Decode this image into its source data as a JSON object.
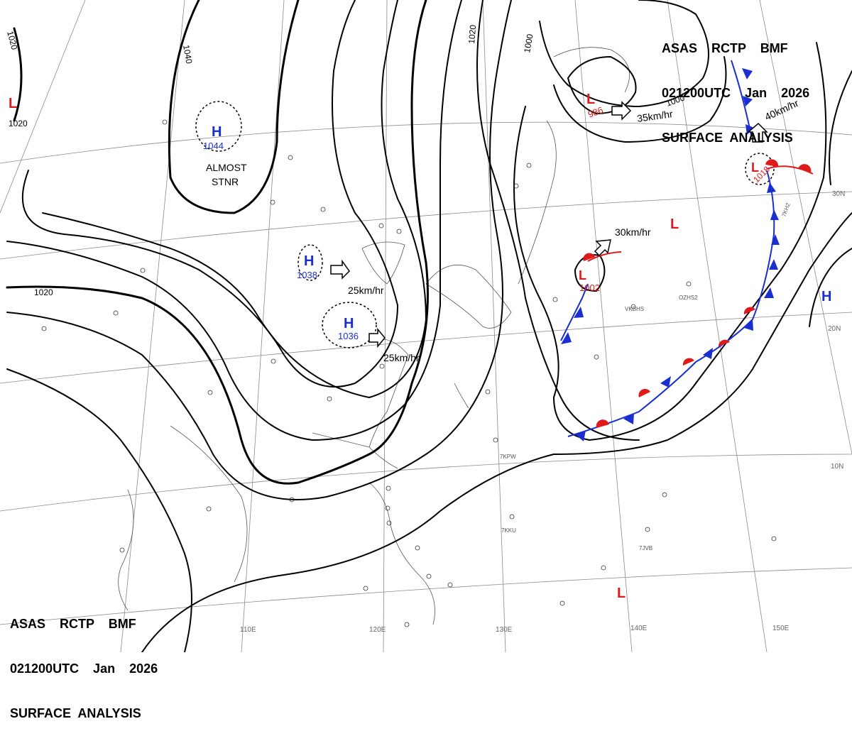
{
  "header": {
    "line1": "ASAS    RCTP    BMF",
    "line2": "021200UTC    Jan    2026",
    "line3": "SURFACE  ANALYSIS"
  },
  "isobar_labels": [
    "1020",
    "1040",
    "1020",
    "1000",
    "1000",
    "1020",
    "1020"
  ],
  "highs": [
    {
      "letter": "H",
      "pressure": "1044"
    },
    {
      "letter": "H",
      "pressure": "1038"
    },
    {
      "letter": "H",
      "pressure": "1036"
    },
    {
      "letter": "H",
      "pressure": ""
    }
  ],
  "lows": [
    {
      "letter": "L",
      "pressure": ""
    },
    {
      "letter": "L",
      "pressure": "986"
    },
    {
      "letter": "L",
      "pressure": "1018"
    },
    {
      "letter": "L",
      "pressure": ""
    },
    {
      "letter": "L",
      "pressure": "1002"
    },
    {
      "letter": "L",
      "pressure": ""
    }
  ],
  "annotations": {
    "almost": "ALMOST",
    "stnr": "STNR",
    "speed_25a": "25km/hr",
    "speed_25b": "25km/hr",
    "speed_35": "35km/hr",
    "speed_40": "40km/hr",
    "speed_30": "30km/hr"
  },
  "lat_labels": [
    "30N",
    "20N",
    "10N"
  ],
  "lon_labels": [
    "110E",
    "120E",
    "130E",
    "140E",
    "150E"
  ],
  "stations": [
    {
      "id": "2KPW",
      "code": "7KPW"
    },
    {
      "id": "2KKU",
      "code": "7KKU"
    },
    {
      "id": "2JVB",
      "code": "7JVB"
    },
    {
      "id": "VKBHS",
      "code": "VKBHS"
    },
    {
      "id": "OZHS2",
      "code": "OZHS2"
    },
    {
      "id": "7KH2",
      "code": "7KH2"
    }
  ],
  "colors": {
    "high": "#1a2fd0",
    "low": "#e01a1a",
    "cold_front": "#1a2fd0",
    "warm_front": "#e01a1a",
    "isobar": "#000000",
    "coast": "#555555",
    "grid": "#8a8a8a"
  }
}
